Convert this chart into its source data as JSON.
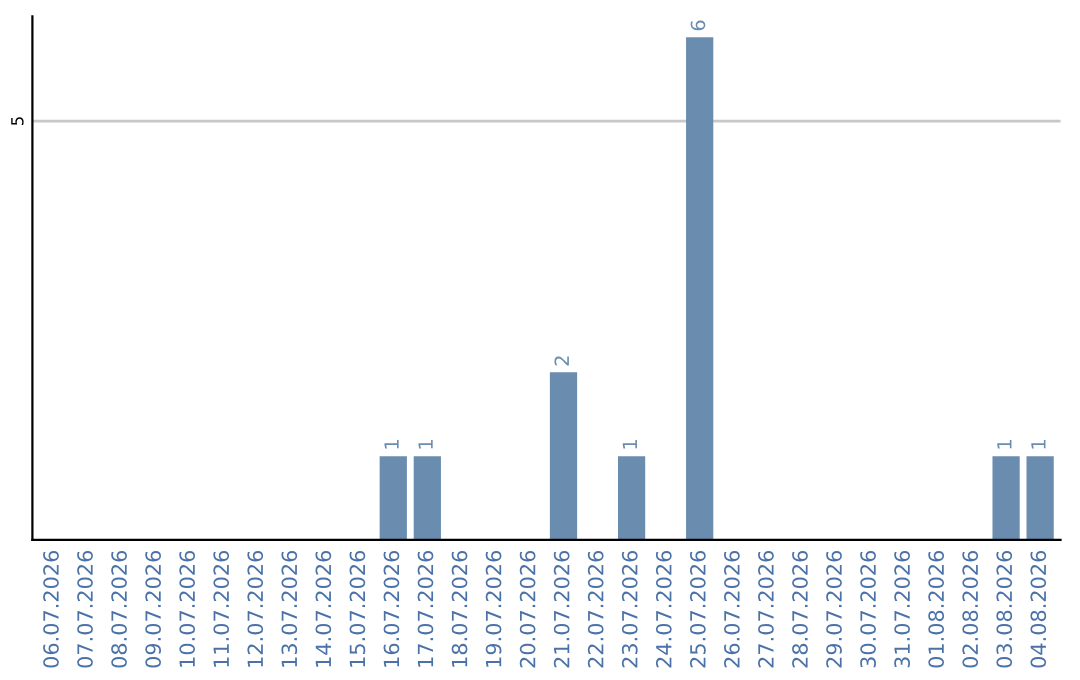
{
  "chart_data": {
    "type": "bar",
    "categories": [
      "06.07.2026",
      "07.07.2026",
      "08.07.2026",
      "09.07.2026",
      "10.07.2026",
      "11.07.2026",
      "12.07.2026",
      "13.07.2026",
      "14.07.2026",
      "15.07.2026",
      "16.07.2026",
      "17.07.2026",
      "18.07.2026",
      "19.07.2026",
      "20.07.2026",
      "21.07.2026",
      "22.07.2026",
      "23.07.2026",
      "24.07.2026",
      "25.07.2026",
      "26.07.2026",
      "27.07.2026",
      "28.07.2026",
      "29.07.2026",
      "30.07.2026",
      "31.07.2026",
      "01.08.2026",
      "02.08.2026",
      "03.08.2026",
      "04.08.2026"
    ],
    "values": [
      0,
      0,
      0,
      0,
      0,
      0,
      0,
      0,
      0,
      0,
      1,
      1,
      0,
      0,
      0,
      2,
      0,
      1,
      0,
      6,
      0,
      0,
      0,
      0,
      0,
      0,
      0,
      0,
      1,
      1
    ],
    "value_labels": [
      null,
      null,
      null,
      null,
      null,
      null,
      null,
      null,
      null,
      null,
      "1",
      "1",
      null,
      null,
      null,
      "2",
      null,
      "1",
      null,
      "6",
      null,
      null,
      null,
      null,
      null,
      null,
      null,
      null,
      "1",
      "1"
    ],
    "color": "#6a8caf",
    "ylim": [
      0,
      6.25
    ],
    "yticks": [
      5
    ],
    "grid": "y",
    "legend": false
  }
}
